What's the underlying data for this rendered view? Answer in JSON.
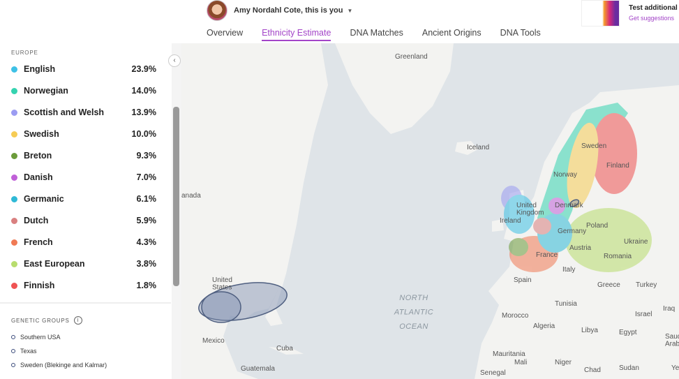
{
  "header": {
    "user_name": "Amy Nordahl Cote, this is you",
    "tabs": [
      {
        "label": "Overview"
      },
      {
        "label": "Ethnicity Estimate",
        "active": true
      },
      {
        "label": "DNA Matches"
      },
      {
        "label": "Ancient Origins"
      },
      {
        "label": "DNA Tools"
      }
    ]
  },
  "promo": {
    "title": "Test additional",
    "link": "Get suggestions"
  },
  "sidebar": {
    "section": "EUROPE",
    "regions": [
      {
        "name": "English",
        "percent": "23.9%",
        "color": "#3ec1e6"
      },
      {
        "name": "Norwegian",
        "percent": "14.0%",
        "color": "#35d3b0"
      },
      {
        "name": "Scottish and Welsh",
        "percent": "13.9%",
        "color": "#9b9cf2"
      },
      {
        "name": "Swedish",
        "percent": "10.0%",
        "color": "#f6cc55"
      },
      {
        "name": "Breton",
        "percent": "9.3%",
        "color": "#6b9b3a"
      },
      {
        "name": "Danish",
        "percent": "7.0%",
        "color": "#c060d8"
      },
      {
        "name": "Germanic",
        "percent": "6.1%",
        "color": "#2fb9d6"
      },
      {
        "name": "Dutch",
        "percent": "5.9%",
        "color": "#d98080"
      },
      {
        "name": "French",
        "percent": "4.3%",
        "color": "#f07a55"
      },
      {
        "name": "East European",
        "percent": "3.8%",
        "color": "#b8dd6e"
      },
      {
        "name": "Finnish",
        "percent": "1.8%",
        "color": "#ef5353"
      }
    ],
    "groups_title": "GENETIC GROUPS",
    "groups": [
      "Southern USA",
      "Texas",
      "Sweden (Blekinge and Kalmar)"
    ]
  },
  "map": {
    "labels": [
      {
        "lines": [
          "Greenland"
        ]
      },
      {
        "lines": [
          "Iceland"
        ]
      },
      {
        "lines": [
          "anada"
        ]
      },
      {
        "lines": [
          "United",
          "States"
        ]
      },
      {
        "lines": [
          "Mexico"
        ]
      },
      {
        "lines": [
          "Cuba"
        ]
      },
      {
        "lines": [
          "Guatemala"
        ]
      },
      {
        "lines": [
          "NORTH",
          "ATLANTIC",
          "OCEAN"
        ]
      },
      {
        "lines": [
          "Sweden"
        ]
      },
      {
        "lines": [
          "Finland"
        ]
      },
      {
        "lines": [
          "Norway"
        ]
      },
      {
        "lines": [
          "United",
          "Kingdom"
        ]
      },
      {
        "lines": [
          "Ireland"
        ]
      },
      {
        "lines": [
          "Denmark"
        ]
      },
      {
        "lines": [
          "Poland"
        ]
      },
      {
        "lines": [
          "Germany"
        ]
      },
      {
        "lines": [
          "Ukraine"
        ]
      },
      {
        "lines": [
          "Austria"
        ]
      },
      {
        "lines": [
          "France"
        ]
      },
      {
        "lines": [
          "Romania"
        ]
      },
      {
        "lines": [
          "Italy"
        ]
      },
      {
        "lines": [
          "Spain"
        ]
      },
      {
        "lines": [
          "Greece"
        ]
      },
      {
        "lines": [
          "Turkey"
        ]
      },
      {
        "lines": [
          "Tunisia"
        ]
      },
      {
        "lines": [
          "Israel"
        ]
      },
      {
        "lines": [
          "Iraq"
        ]
      },
      {
        "lines": [
          "Morocco"
        ]
      },
      {
        "lines": [
          "Algeria"
        ]
      },
      {
        "lines": [
          "Libya"
        ]
      },
      {
        "lines": [
          "Egypt"
        ]
      },
      {
        "lines": [
          "Saudi",
          "Arabia"
        ]
      },
      {
        "lines": [
          "Mauritania"
        ]
      },
      {
        "lines": [
          "Mali"
        ]
      },
      {
        "lines": [
          "Niger"
        ]
      },
      {
        "lines": [
          "Chad"
        ]
      },
      {
        "lines": [
          "Sudan"
        ]
      },
      {
        "lines": [
          "Senegal"
        ]
      },
      {
        "lines": [
          "Yeme"
        ]
      }
    ]
  }
}
